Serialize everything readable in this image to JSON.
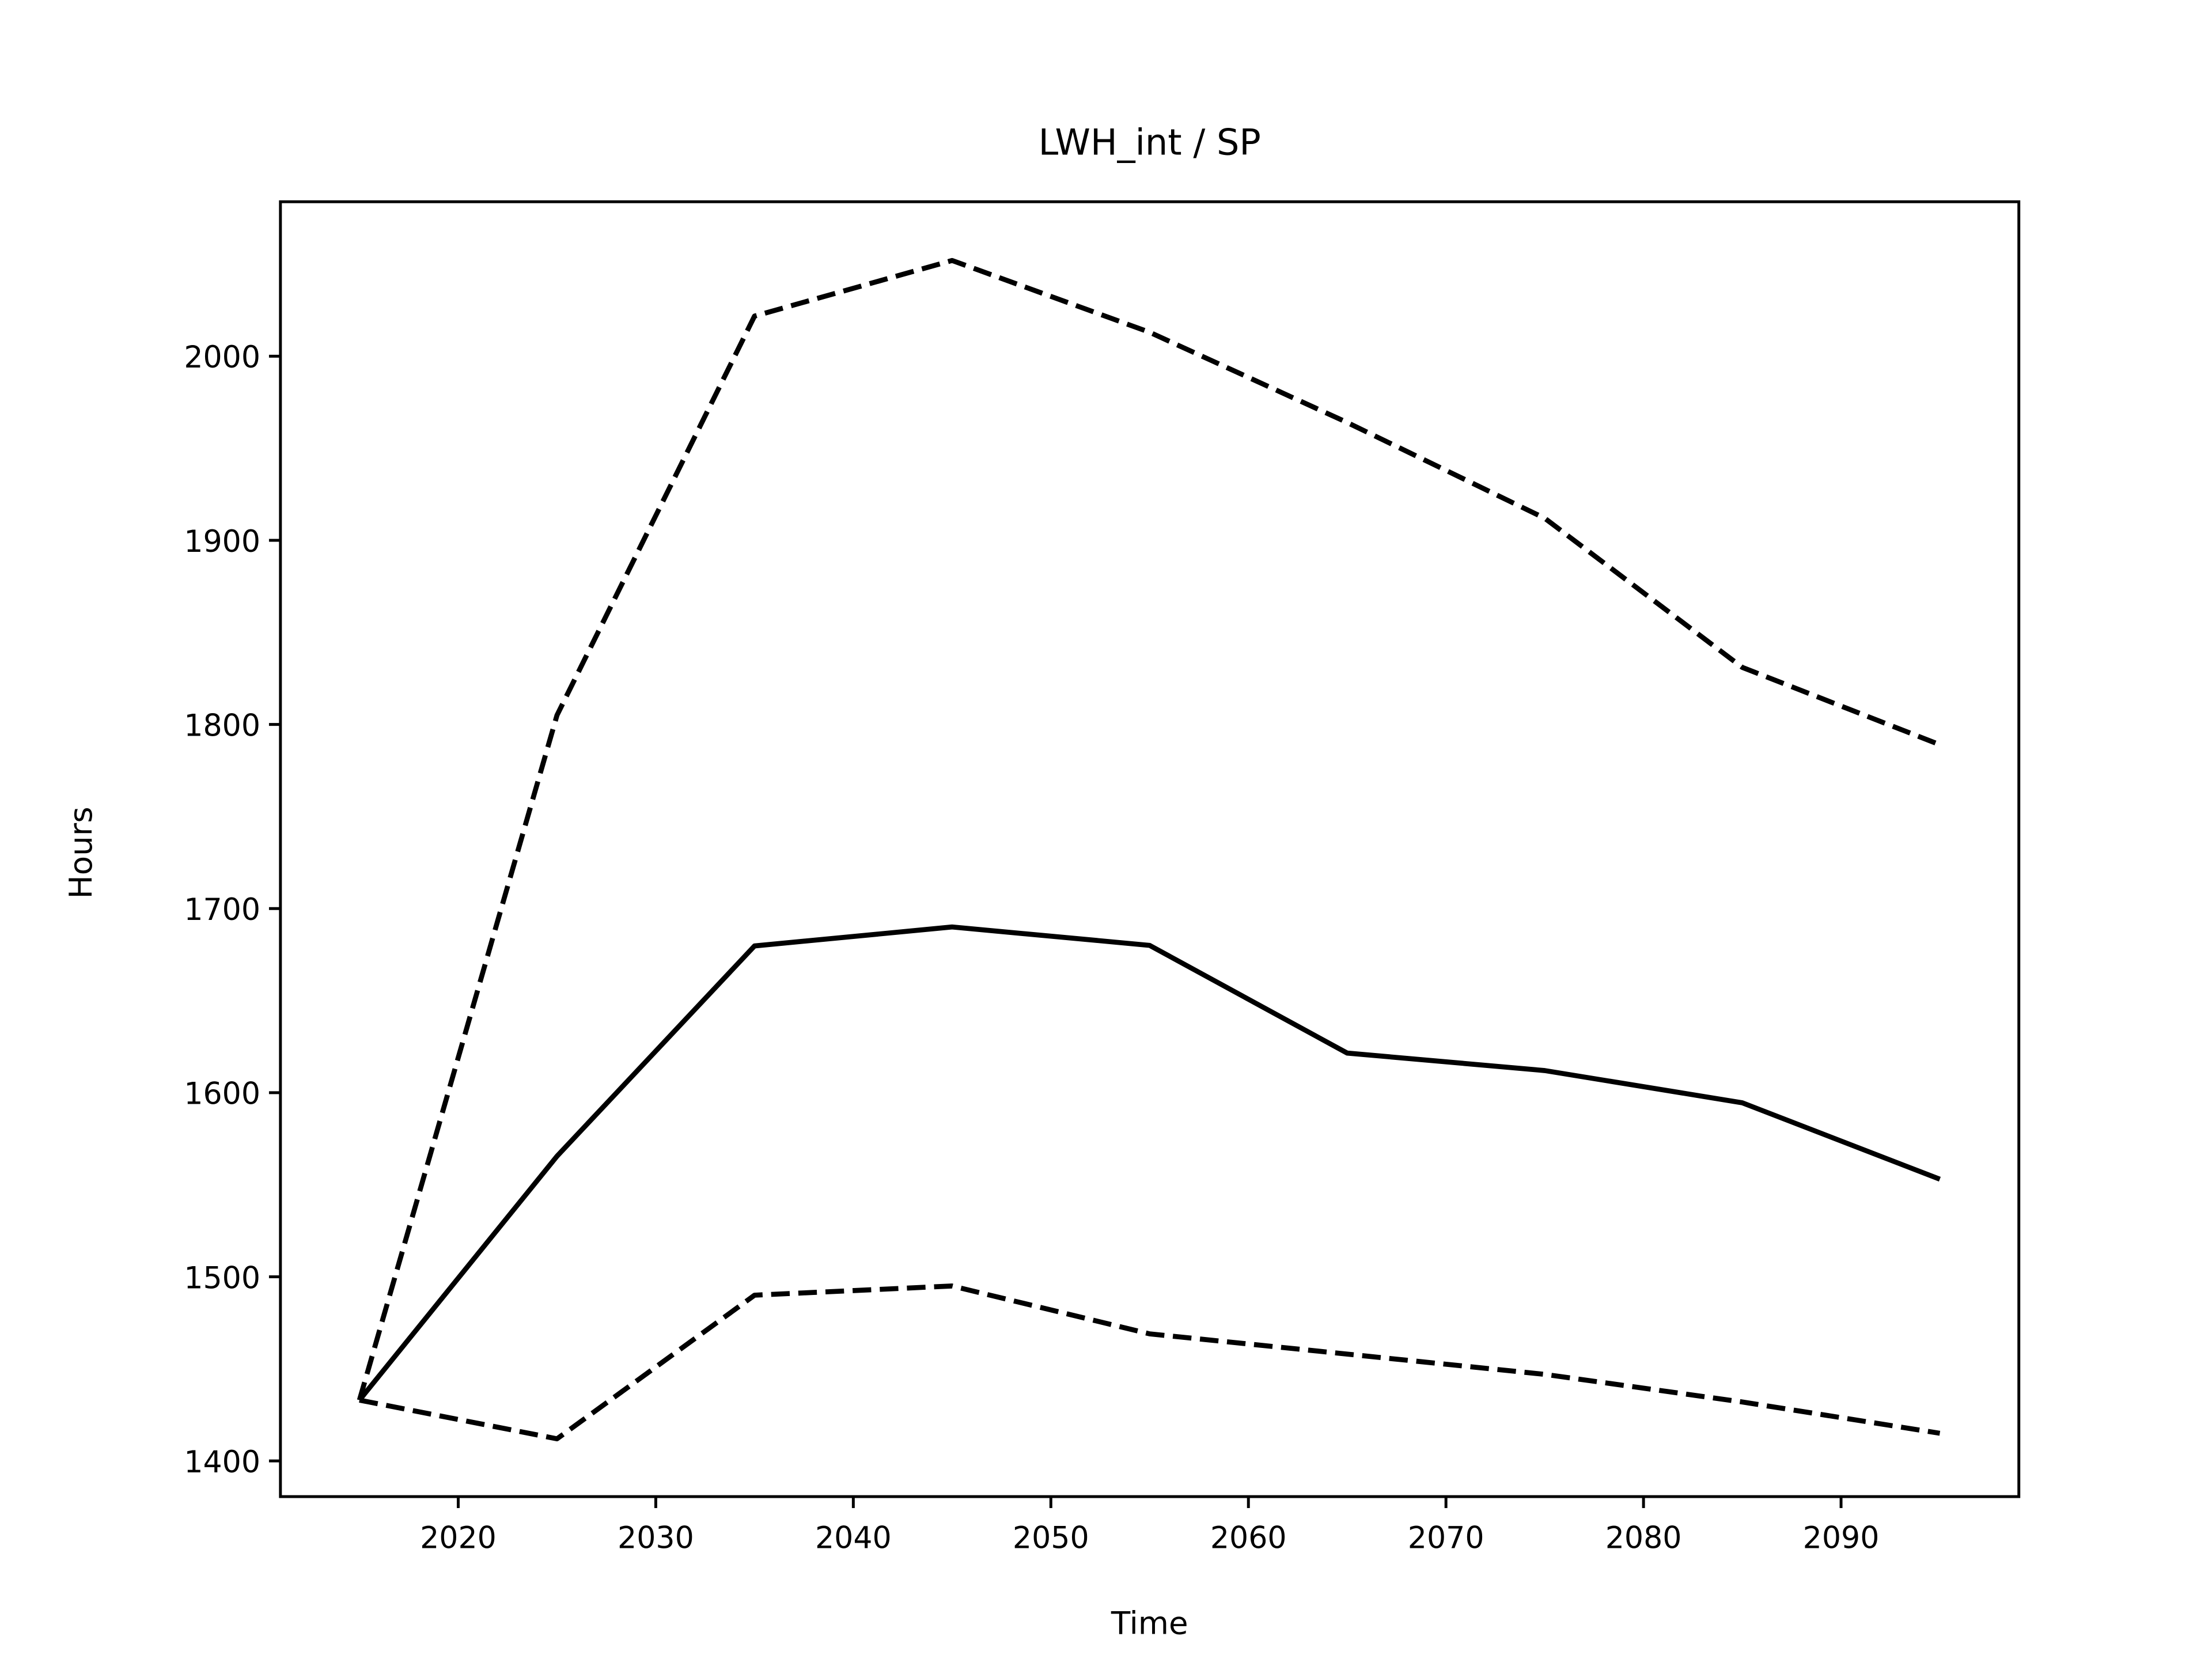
{
  "chart_data": {
    "type": "line",
    "title": "LWH_int / SP",
    "x_label": "Time",
    "y_label": "Hours",
    "x": [
      2015,
      2025,
      2035,
      2045,
      2055,
      2065,
      2075,
      2085,
      2095
    ],
    "series": [
      {
        "color": "#000000",
        "style": "solid",
        "values": [
          1433,
          1565.5,
          1679.7,
          1690,
          1680,
          1621.5,
          1612,
          1594.5,
          1553
        ]
      },
      {
        "color": "#000000",
        "style": "dashed",
        "values": [
          1433,
          1805,
          2021.8,
          2052,
          2013,
          1964,
          1912,
          1831,
          1789
        ]
      },
      {
        "color": "#000000",
        "style": "dashed",
        "values": [
          1433,
          1412,
          1490,
          1495,
          1469,
          1458,
          1447,
          1432,
          1415
        ]
      }
    ],
    "xlim": [
      2011,
      2099
    ],
    "ylim": [
      1380.6,
      2083.9
    ],
    "xticks": [
      2020,
      2030,
      2040,
      2050,
      2060,
      2070,
      2080,
      2090
    ],
    "yticks": [
      1400,
      1500,
      1600,
      1700,
      1800,
      1900,
      2000
    ],
    "grid": false
  }
}
